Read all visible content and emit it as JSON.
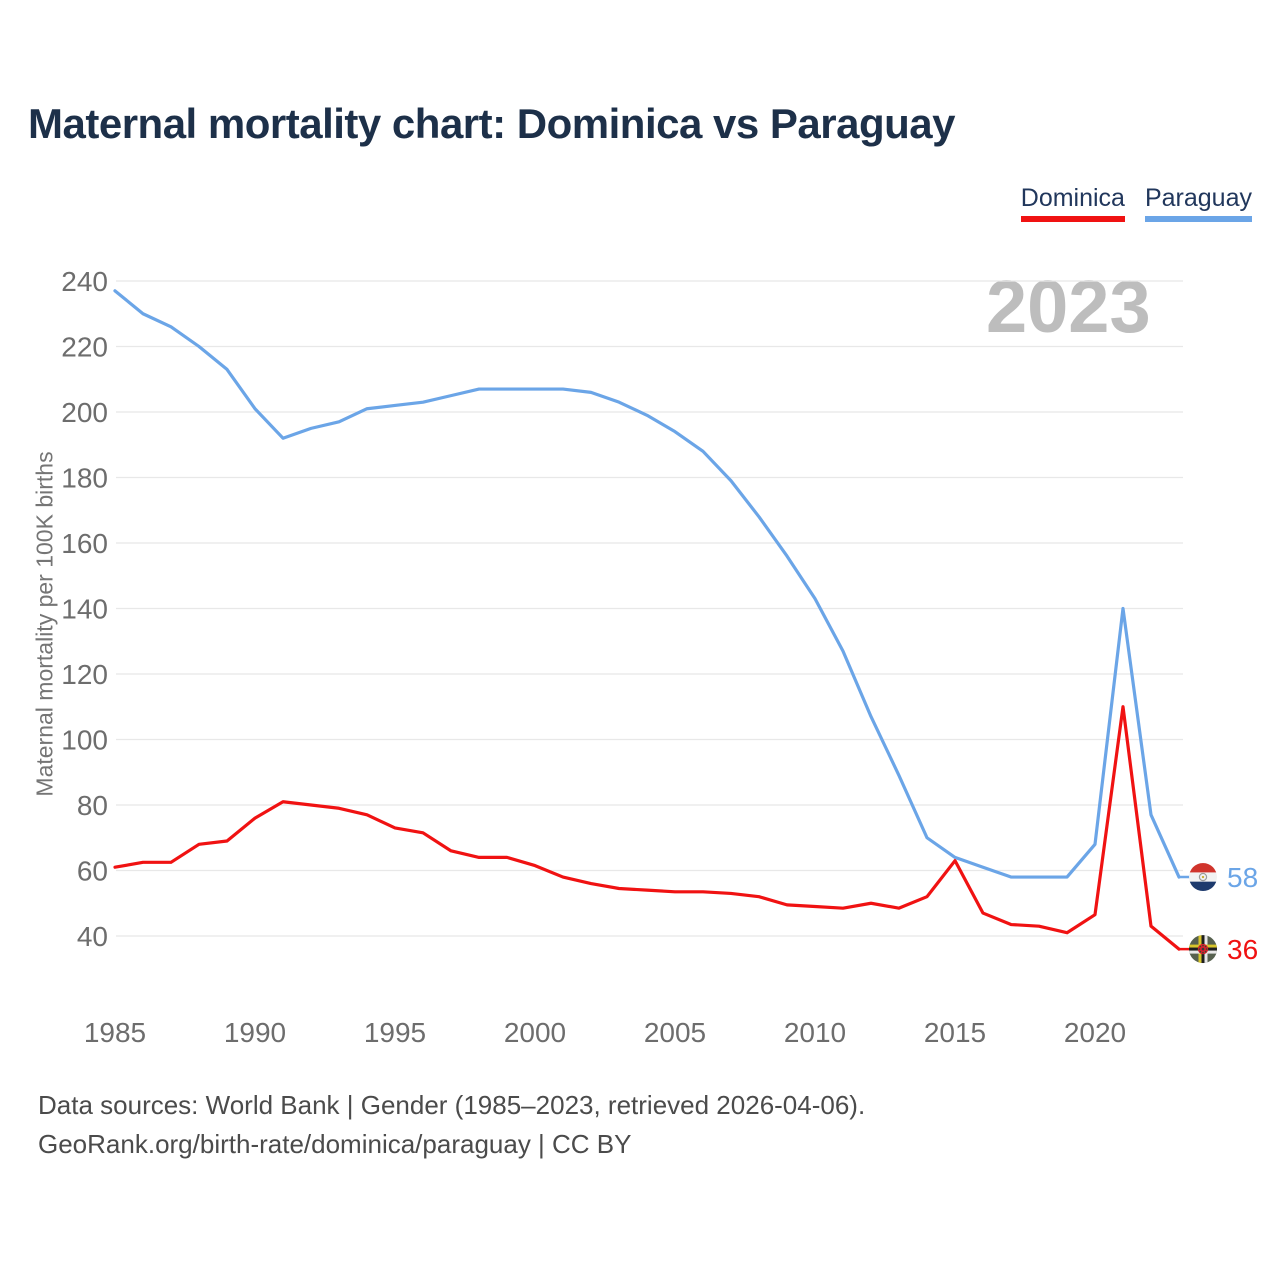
{
  "title": "Maternal mortality chart: Dominica vs Paraguay",
  "legend": {
    "dominica": {
      "label": "Dominica",
      "color": "#f01212"
    },
    "paraguay": {
      "label": "Paraguay",
      "color": "#6ba5e7"
    }
  },
  "watermark": "2023",
  "y_axis_title": "Maternal mortality per 100K births",
  "end_labels": {
    "paraguay": "58",
    "dominica": "36"
  },
  "footer": {
    "line1": "Data sources: World Bank | Gender (1985–2023, retrieved 2026-04-06).",
    "line2": "GeoRank.org/birth-rate/dominica/paraguay | CC BY"
  },
  "colors": {
    "dominica_line": "#f01212",
    "paraguay_line": "#6ba5e7",
    "gridline": "#e8e8e8",
    "tick_text": "#6d6d6d",
    "title_text": "#1d3049",
    "watermark_text": "#bdbdbd"
  },
  "chart_data": {
    "type": "line",
    "title": "Maternal mortality chart: Dominica vs Paraguay",
    "xlabel": "",
    "ylabel": "Maternal mortality per 100K births",
    "x": [
      1985,
      1986,
      1987,
      1988,
      1989,
      1990,
      1991,
      1992,
      1993,
      1994,
      1995,
      1996,
      1997,
      1998,
      1999,
      2000,
      2001,
      2002,
      2003,
      2004,
      2005,
      2006,
      2007,
      2008,
      2009,
      2010,
      2011,
      2012,
      2013,
      2014,
      2015,
      2016,
      2017,
      2018,
      2019,
      2020,
      2021,
      2022,
      2023
    ],
    "series": [
      {
        "name": "Dominica",
        "color": "#f01212",
        "end_value": 36,
        "values": [
          61,
          62.5,
          62.5,
          68,
          69,
          76,
          81,
          80,
          79,
          77,
          73,
          71.5,
          66,
          64,
          64,
          61.5,
          58,
          56,
          54.5,
          54,
          53.5,
          53.5,
          53,
          52,
          49.5,
          49,
          48.5,
          50,
          48.5,
          52,
          63,
          47,
          43.5,
          43,
          41,
          46.5,
          110,
          43,
          36
        ]
      },
      {
        "name": "Paraguay",
        "color": "#6ba5e7",
        "end_value": 58,
        "values": [
          237,
          230,
          226,
          220,
          213,
          201,
          192,
          195,
          197,
          201,
          202,
          203,
          205,
          207,
          207,
          207,
          207,
          206,
          203,
          199,
          194,
          188,
          179,
          168,
          156,
          143,
          127,
          107,
          89,
          70,
          64,
          61,
          58,
          58,
          58,
          68,
          140,
          77,
          58
        ]
      }
    ],
    "x_ticks": [
      1985,
      1990,
      1995,
      2000,
      2005,
      2010,
      2015,
      2020
    ],
    "y_ticks": [
      40,
      60,
      80,
      100,
      120,
      140,
      160,
      180,
      200,
      220,
      240
    ],
    "xlim": [
      1985,
      2023
    ],
    "ylim": [
      40,
      240
    ],
    "grid": true,
    "legend_position": "top-right"
  }
}
